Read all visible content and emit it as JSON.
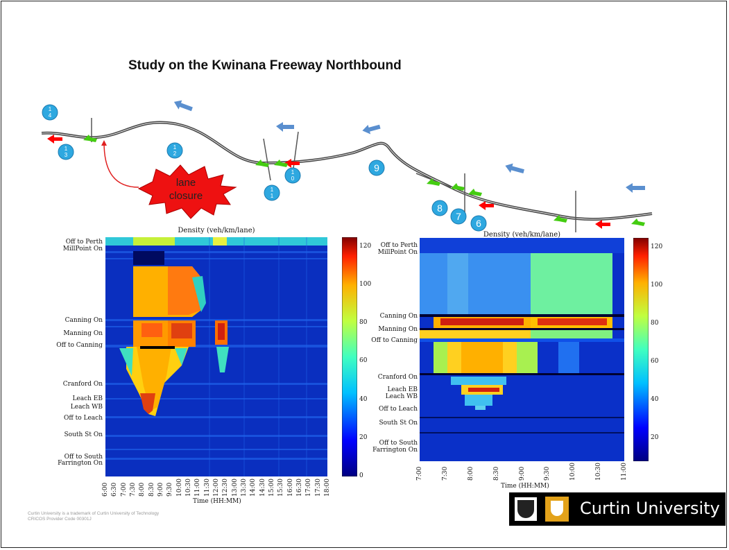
{
  "slide": {
    "title": "Study on the Kwinana Freeway Northbound"
  },
  "map": {
    "markers": [
      "1\n4",
      "1\n3",
      "1\n2",
      "1\n1",
      "1\n0",
      "9",
      "8",
      "7",
      "6"
    ],
    "callout": "lane\nclosure",
    "callout_lines": [
      "lane",
      "closure"
    ]
  },
  "left_chart": {
    "title": "Density (veh/km/lane)",
    "xlabel": "Time (HH:MM)",
    "y_labels": [
      "Off to Perth",
      "MillPoint On",
      "Canning On",
      "Manning On",
      "Off to Canning",
      "Cranford On",
      "Leach EB",
      "Leach WB",
      "Off to Leach",
      "South St On",
      "Off to South",
      "Farrington On"
    ],
    "x_ticks": [
      "6:00",
      "6:30",
      "7:00",
      "7:30",
      "8:00",
      "8:30",
      "9:00",
      "9:30",
      "10:00",
      "10:30",
      "11:00",
      "11:30",
      "12:00",
      "12:30",
      "13:00",
      "13:30",
      "14:00",
      "14:30",
      "15:00",
      "15:30",
      "16:00",
      "16:30",
      "17:00",
      "17:30",
      "18:00"
    ],
    "colorbar_ticks": [
      "0",
      "20",
      "40",
      "60",
      "80",
      "100",
      "120"
    ]
  },
  "right_chart": {
    "title": "Density (veh/km/lane)",
    "xlabel": "Time (HH:MM)",
    "y_labels": [
      "Off to Perth",
      "MillPoint On",
      "Canning On",
      "Manning On",
      "Off to Canning",
      "Cranford On",
      "Leach EB",
      "Leach WB",
      "Off to Leach",
      "South St On",
      "Off to South",
      "Farrington On"
    ],
    "x_ticks": [
      "7:00",
      "7:30",
      "8:00",
      "8:30",
      "9:00",
      "9:30",
      "10:00",
      "10:30",
      "11:00"
    ],
    "colorbar_ticks": [
      "20",
      "40",
      "60",
      "80",
      "100",
      "120"
    ]
  },
  "footer": {
    "line1": "Curtin University is a trademark of Curtin University of Technology",
    "line2": "CRICOS Provider Code 00301J"
  },
  "logo": {
    "name": "Curtin University"
  },
  "colors": {
    "jet_low": "#000080",
    "jet_high": "#800000",
    "logo_gold": "#e3a21a",
    "marker_blue": "#2ea8e0",
    "arrow_red": "#ff0000",
    "arrow_green": "#44cc11"
  }
}
